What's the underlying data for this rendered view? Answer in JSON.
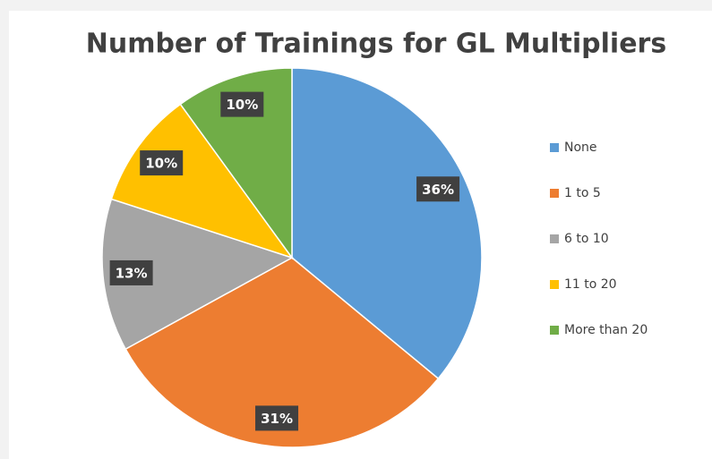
{
  "chart_data": {
    "type": "pie",
    "title": "Number of Trainings for GL Multipliers",
    "categories": [
      "None",
      "1 to 5",
      "6 to 10",
      "11 to 20",
      "More than 20"
    ],
    "values": [
      36,
      31,
      13,
      10,
      10
    ],
    "value_labels": [
      "36%",
      "31%",
      "13%",
      "10%",
      "10%"
    ],
    "colors": [
      "#5b9bd5",
      "#ed7d31",
      "#a5a5a5",
      "#ffc000",
      "#70ad47"
    ],
    "legend": "right"
  }
}
